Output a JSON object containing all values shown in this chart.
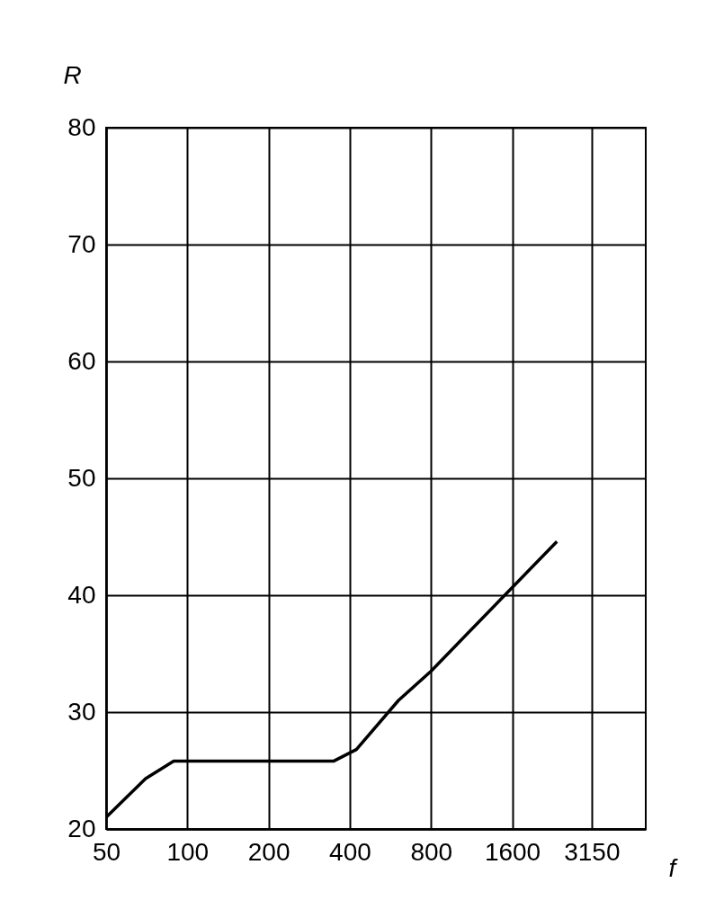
{
  "chart_data": {
    "type": "line",
    "xlabel": "f",
    "ylabel": "R",
    "log": "x",
    "grid": true,
    "marker": "none",
    "line_style": "solid",
    "x": [
      50,
      70,
      89,
      348,
      423,
      606,
      800,
      2343
    ],
    "series": [
      {
        "color": "#000000",
        "values": [
          21,
          24.3,
          25.8,
          25.8,
          26.8,
          31,
          33.5,
          44.6
        ]
      }
    ],
    "xlim": [
      50,
      5000
    ],
    "xticks": [
      50,
      100,
      200,
      400,
      800,
      1600,
      3150
    ],
    "ylim": [
      20,
      80
    ],
    "yticks": [
      20,
      30,
      40,
      50,
      60,
      70,
      80
    ]
  }
}
